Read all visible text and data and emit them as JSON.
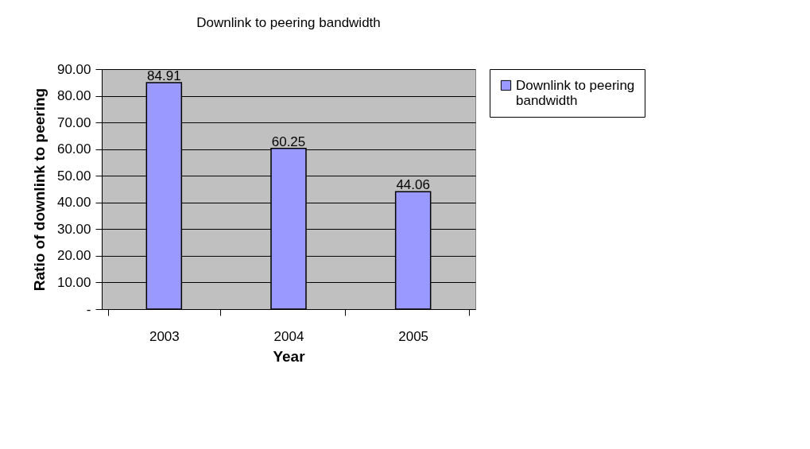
{
  "chart_data": {
    "type": "bar",
    "title": "Downlink to peering bandwidth",
    "xlabel": "Year",
    "ylabel": "Ratio of downlink to peering",
    "categories": [
      "2003",
      "2004",
      "2005"
    ],
    "series": [
      {
        "name": "Downlink to peering bandwidth",
        "color": "#9999ff",
        "values": [
          84.91,
          60.25,
          44.06
        ]
      }
    ],
    "ylim": [
      0,
      90
    ],
    "yticks": [
      {
        "value": 0,
        "label": "-"
      },
      {
        "value": 10,
        "label": "10.00"
      },
      {
        "value": 20,
        "label": "20.00"
      },
      {
        "value": 30,
        "label": "30.00"
      },
      {
        "value": 40,
        "label": "40.00"
      },
      {
        "value": 50,
        "label": "50.00"
      },
      {
        "value": 60,
        "label": "60.00"
      },
      {
        "value": 70,
        "label": "70.00"
      },
      {
        "value": 80,
        "label": "80.00"
      },
      {
        "value": 90,
        "label": "90.00"
      }
    ],
    "grid": "y",
    "legend": "right",
    "data_labels": true
  }
}
